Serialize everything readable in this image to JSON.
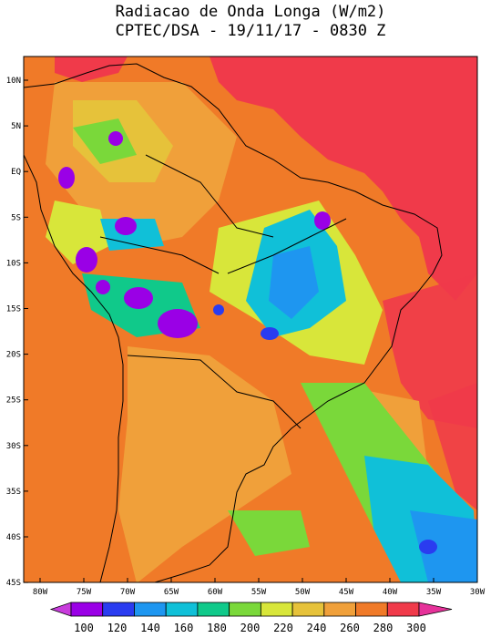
{
  "title_line1": "Radiacao de Onda Longa (W/m2)",
  "title_line2": "CPTEC/DSA - 19/11/17 - 0830 Z",
  "map": {
    "lat_ticks": [
      "10N",
      "5N",
      "EQ",
      "5S",
      "10S",
      "15S",
      "20S",
      "25S",
      "30S",
      "35S",
      "40S",
      "45S"
    ],
    "lon_ticks": [
      "80W",
      "75W",
      "70W",
      "65W",
      "60W",
      "55W",
      "50W",
      "45W",
      "40W",
      "35W",
      "30W"
    ]
  },
  "colorbar": {
    "labels": [
      "100",
      "120",
      "140",
      "160",
      "180",
      "200",
      "220",
      "240",
      "260",
      "280",
      "300"
    ],
    "colors": [
      "#9a00e6",
      "#2a3cf0",
      "#1e96f0",
      "#10c0d8",
      "#10c98a",
      "#7ad83a",
      "#d8e63a",
      "#e6c23a",
      "#f0a03a",
      "#f07a28",
      "#f03a4a"
    ],
    "left_arrow": "#c83cdc",
    "right_arrow": "#e6329a"
  }
}
